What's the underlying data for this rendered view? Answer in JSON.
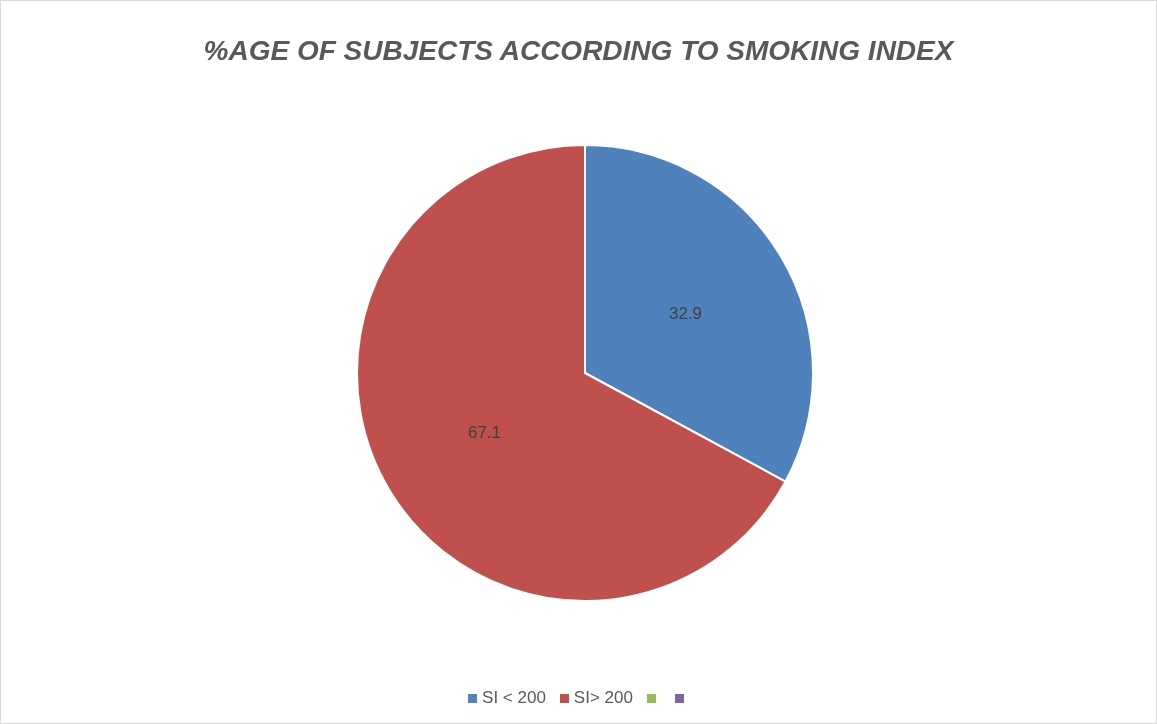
{
  "chart_data": {
    "type": "pie",
    "title": "%AGE OF SUBJECTS ACCORDING TO SMOKING INDEX",
    "categories": [
      "SI < 200",
      "SI> 200",
      null,
      null
    ],
    "values": [
      32.9,
      67.1,
      null,
      null
    ],
    "colors": [
      "#4f81bd",
      "#c0504d",
      "#9bbb59",
      "#8064a2"
    ],
    "data_labels": true,
    "legend": "bottom"
  }
}
